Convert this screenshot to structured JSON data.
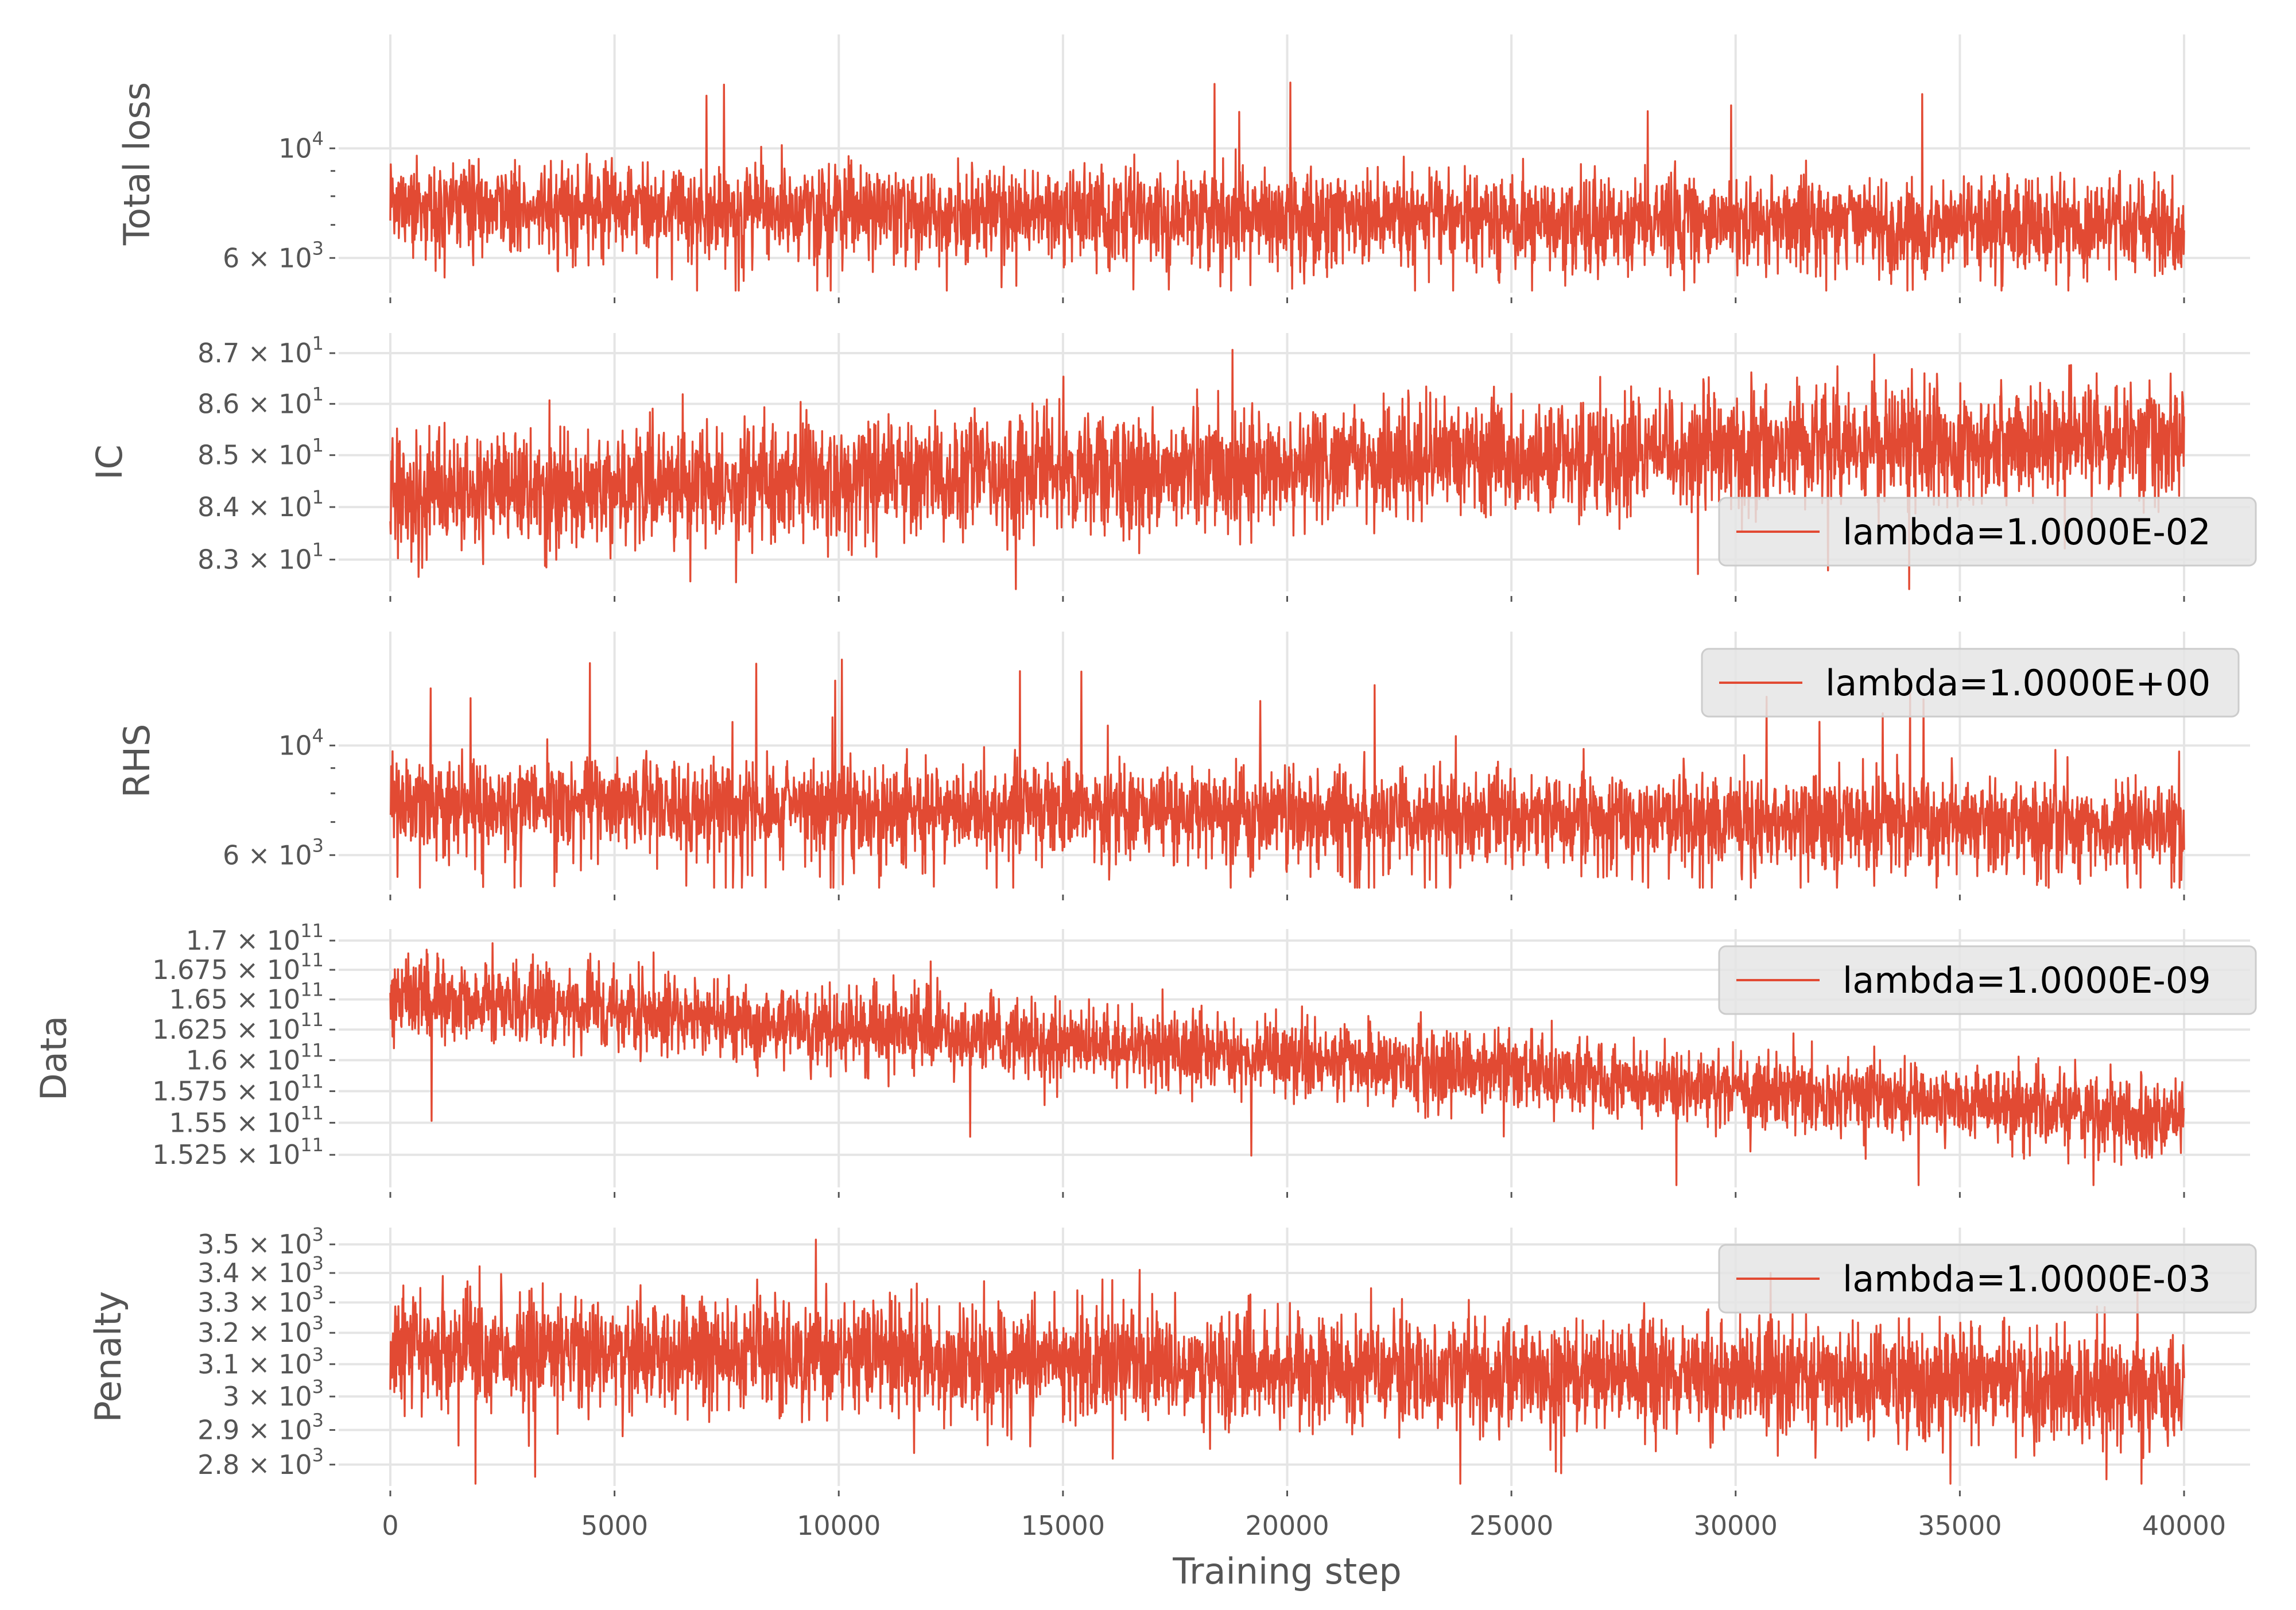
{
  "colors": {
    "line": "#E24A33",
    "grid": "#E5E5E5",
    "text": "#555555",
    "legend_bg": "#E5E5E5",
    "legend_border": "#CCCCCC",
    "background": "#FFFFFF"
  },
  "chart_data": {
    "type": "line",
    "shared_x": true,
    "xlabel": "Training step",
    "xlim": [
      0,
      40000
    ],
    "xticks": [
      0,
      5000,
      10000,
      15000,
      20000,
      25000,
      30000,
      35000,
      40000
    ],
    "xtick_labels": [
      "0",
      "5000",
      "10000",
      "15000",
      "20000",
      "25000",
      "30000",
      "35000",
      "40000"
    ],
    "grid": true,
    "panels": [
      {
        "ylabel": "Total loss",
        "yscale": "log",
        "ylim": [
          5100,
          17000
        ],
        "yticks": [
          {
            "value": 10000,
            "mantissa": "10",
            "exp": "4"
          },
          {
            "value": 6000,
            "mantissa": "6 × 10",
            "exp": "3"
          }
        ],
        "legend": "",
        "series": {
          "start_mean": 7700,
          "end_mean": 6900,
          "noise_frac": 0.11,
          "spike_prob": 0.004,
          "spike_max": 0.85,
          "low_spike_frac": 0.22
        }
      },
      {
        "ylabel": "IC",
        "yscale": "log",
        "ylim": [
          82.4,
          87.4
        ],
        "yticks": [
          {
            "value": 87,
            "mantissa": "8.7 × 10",
            "exp": "1"
          },
          {
            "value": 86,
            "mantissa": "8.6 × 10",
            "exp": "1"
          },
          {
            "value": 85,
            "mantissa": "8.5 × 10",
            "exp": "1"
          },
          {
            "value": 84,
            "mantissa": "8.4 × 10",
            "exp": "1"
          },
          {
            "value": 83,
            "mantissa": "8.3 × 10",
            "exp": "1"
          }
        ],
        "legend": "lambda=1.0000E-02",
        "legend_loc": "lower-right",
        "series": {
          "start_mean": 84.25,
          "end_mean": 85.35,
          "noise_frac": 0.0065,
          "spike_prob": 0.002,
          "spike_max": 0.006,
          "low_spike_frac": 0.5
        }
      },
      {
        "ylabel": "RHS",
        "yscale": "log",
        "ylim": [
          5100,
          17000
        ],
        "yticks": [
          {
            "value": 10000,
            "mantissa": "10",
            "exp": "4"
          },
          {
            "value": 6000,
            "mantissa": "6 × 10",
            "exp": "3"
          }
        ],
        "legend": "lambda=1.0000E+00",
        "legend_loc": "upper-right",
        "series": {
          "start_mean": 7700,
          "end_mean": 6900,
          "noise_frac": 0.11,
          "spike_prob": 0.004,
          "spike_max": 0.85,
          "low_spike_frac": 0.22
        }
      },
      {
        "ylabel": "Data",
        "yscale": "log",
        "ylim": [
          150000000000.0,
          171000000000.0
        ],
        "yticks": [
          {
            "value": 170000000000.0,
            "mantissa": "1.7 × 10",
            "exp": "11"
          },
          {
            "value": 167500000000.0,
            "mantissa": "1.675 × 10",
            "exp": "11"
          },
          {
            "value": 165000000000.0,
            "mantissa": "1.65 × 10",
            "exp": "11"
          },
          {
            "value": 162500000000.0,
            "mantissa": "1.625 × 10",
            "exp": "11"
          },
          {
            "value": 160000000000.0,
            "mantissa": "1.6 × 10",
            "exp": "11"
          },
          {
            "value": 157500000000.0,
            "mantissa": "1.575 × 10",
            "exp": "11"
          },
          {
            "value": 155000000000.0,
            "mantissa": "1.55 × 10",
            "exp": "11"
          },
          {
            "value": 152500000000.0,
            "mantissa": "1.525 × 10",
            "exp": "11"
          }
        ],
        "legend": "lambda=1.0000E-09",
        "legend_loc": "upper-right",
        "series": {
          "start_mean": 165200000000.0,
          "end_mean": 155200000000.0,
          "noise_frac": 0.0095,
          "spike_prob": 0.002,
          "spike_max": 0.01,
          "low_spike_frac": 0.5
        }
      },
      {
        "ylabel": "Penalty",
        "yscale": "log",
        "ylim": [
          2740,
          3560
        ],
        "yticks": [
          {
            "value": 3500,
            "mantissa": "3.5 × 10",
            "exp": "3"
          },
          {
            "value": 3400,
            "mantissa": "3.4 × 10",
            "exp": "3"
          },
          {
            "value": 3300,
            "mantissa": "3.3 × 10",
            "exp": "3"
          },
          {
            "value": 3200,
            "mantissa": "3.2 × 10",
            "exp": "3"
          },
          {
            "value": 3100,
            "mantissa": "3.1 × 10",
            "exp": "3"
          },
          {
            "value": 3000,
            "mantissa": "3 × 10",
            "exp": "3"
          },
          {
            "value": 2900,
            "mantissa": "2.9 × 10",
            "exp": "3"
          },
          {
            "value": 2800,
            "mantissa": "2.8 × 10",
            "exp": "3"
          }
        ],
        "legend": "lambda=1.0000E-03",
        "legend_loc": "upper-right",
        "series": {
          "start_mean": 3160,
          "end_mean": 3020,
          "noise_frac": 0.028,
          "spike_prob": 0.003,
          "spike_max": 0.06,
          "low_spike_frac": 0.4
        }
      }
    ]
  }
}
